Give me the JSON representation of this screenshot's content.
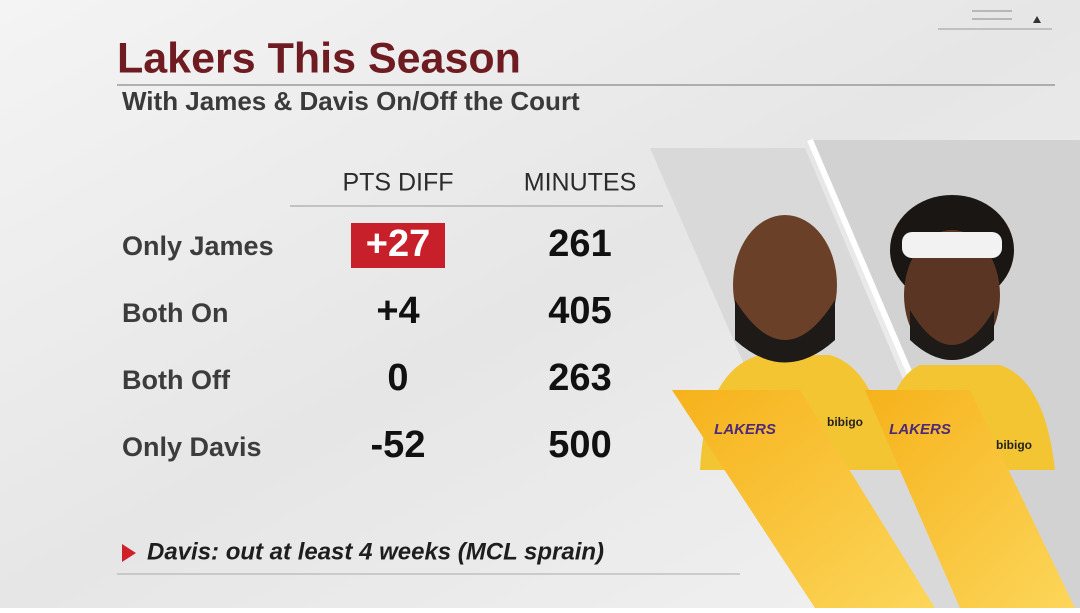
{
  "header": {
    "title": "Lakers This Season",
    "subtitle": "With James & Davis On/Off the Court"
  },
  "table": {
    "columns": [
      "PTS DIFF",
      "MINUTES"
    ],
    "rows": [
      [
        "Only James",
        "+27",
        261
      ],
      [
        "Both On",
        "+4",
        405
      ],
      [
        "Both Off",
        "0",
        263
      ],
      [
        "Only Davis",
        "-52",
        500
      ]
    ],
    "highlight": {
      "row": 0,
      "column": 1,
      "color": "#c8202a"
    }
  },
  "players": [
    {
      "logo": "LAKERS",
      "sponsor": "bibigo"
    },
    {
      "logo": "LAKERS",
      "sponsor": "bibigo"
    }
  ],
  "footnote": "Davis: out at least 4 weeks (MCL sprain)"
}
